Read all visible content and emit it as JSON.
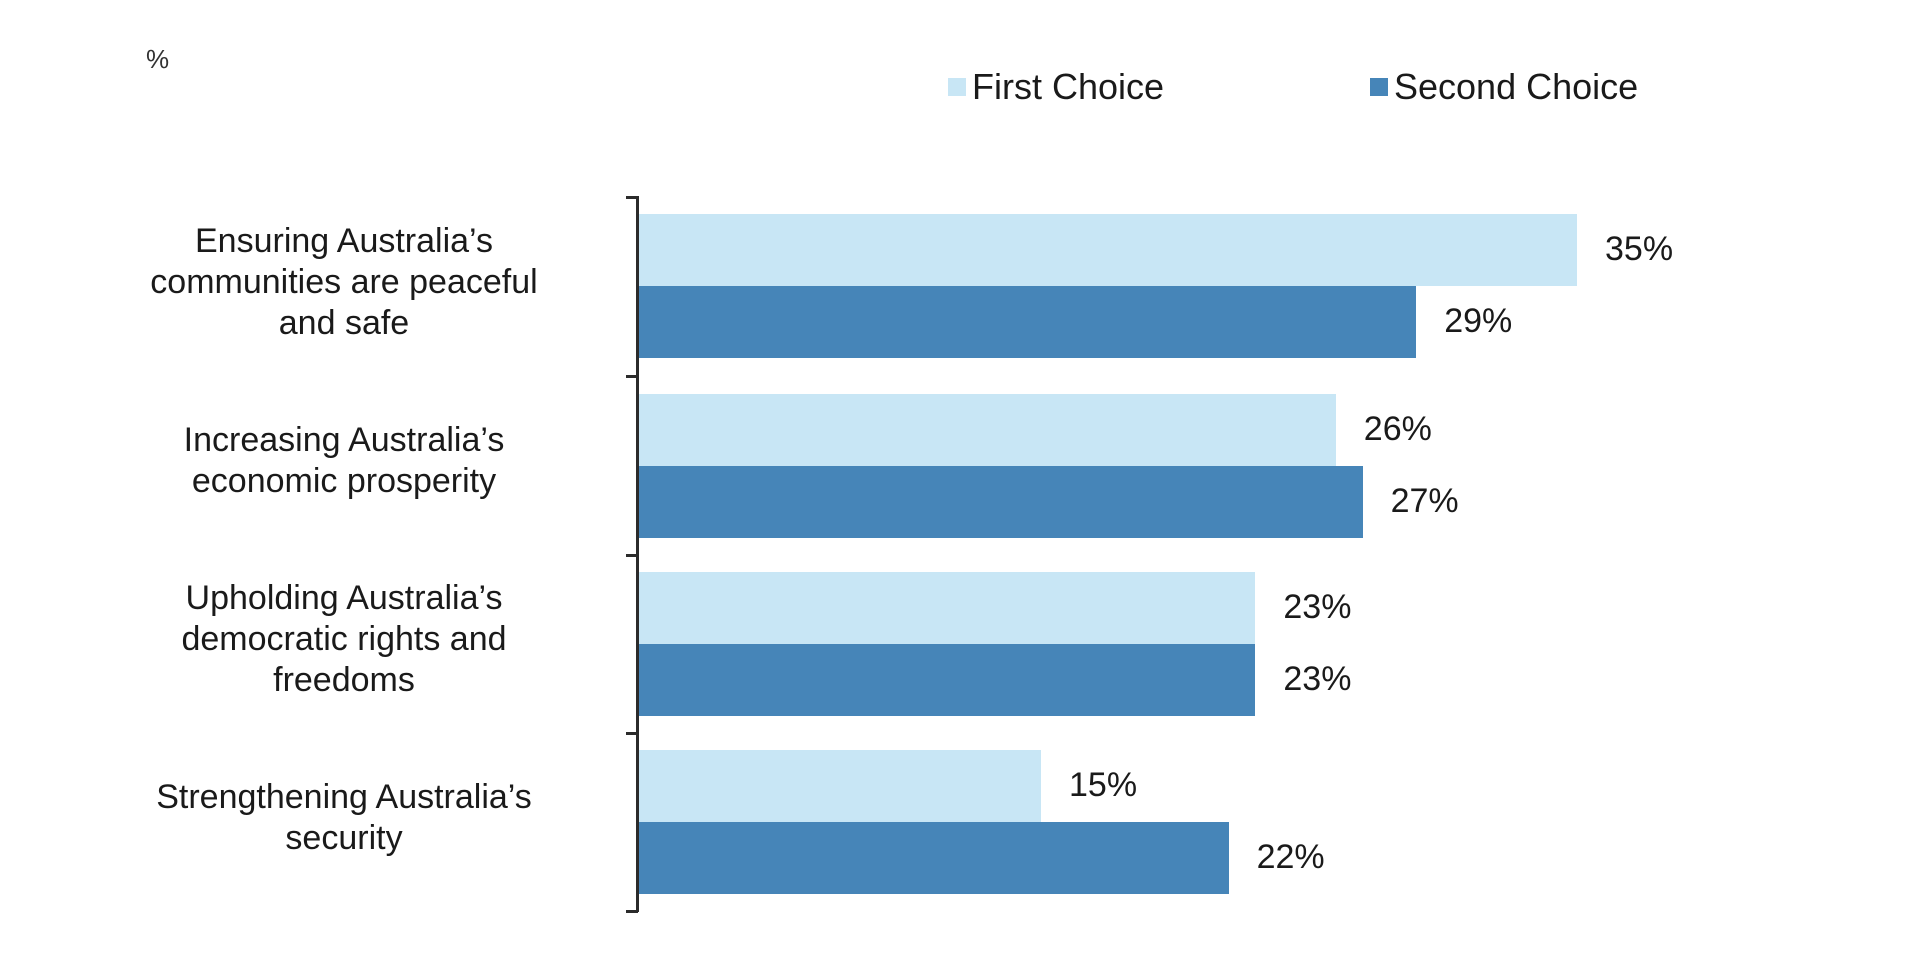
{
  "chart_data": {
    "type": "bar",
    "orientation": "horizontal",
    "unit_label": "%",
    "categories": [
      "Ensuring Australia's communities are peaceful and safe",
      "Increasing Australia's economic prosperity",
      "Upholding Australia's democratic rights and freedoms",
      "Strengthening Australia's security"
    ],
    "series": [
      {
        "name": "First Choice",
        "color": "#c8e6f5",
        "values": [
          35,
          26,
          23,
          15
        ],
        "labels": [
          "35%",
          "26%",
          "23%",
          "15%"
        ]
      },
      {
        "name": "Second Choice",
        "color": "#4685b8",
        "values": [
          29,
          27,
          23,
          22
        ],
        "labels": [
          "29%",
          "27%",
          "23%",
          "22%"
        ]
      }
    ],
    "title": "",
    "xlabel": "",
    "ylabel": "",
    "xlim": [
      0,
      36
    ],
    "grid": false,
    "legend_position": "top-right",
    "data_labels": true
  },
  "labels": {
    "unit": "%",
    "legend_first": "First Choice",
    "legend_second": "Second Choice",
    "cat_lines": [
      [
        "Ensuring Australia’s",
        "communities are peaceful",
        "and safe"
      ],
      [
        "Increasing Australia’s",
        "economic prosperity"
      ],
      [
        "Upholding Australia’s",
        "democratic rights and",
        "freedoms"
      ],
      [
        "Strengthening Australia’s",
        "security"
      ]
    ]
  }
}
